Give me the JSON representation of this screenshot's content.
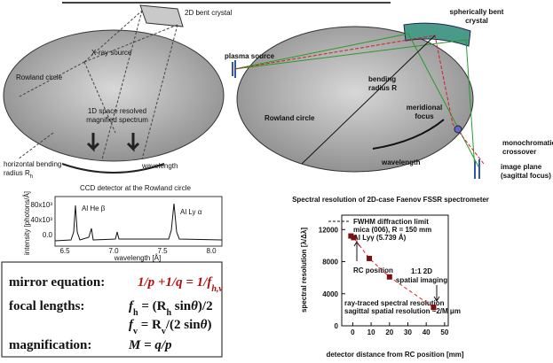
{
  "left_diagram": {
    "crystal": "2D bent crystal",
    "source": "X-ray source",
    "rowland": "Rowland circle",
    "spectrum": [
      "1D space resolved",
      "magnified spectrum"
    ],
    "bending": [
      "horizontal bending",
      "radius R",
      "h"
    ],
    "wavelength": "wavelength",
    "detector": "CCD detector at the Rowland circle",
    "inset": {
      "yticks": [
        "80x10³",
        "40x10³",
        "0.0"
      ],
      "xticks": [
        "6.5",
        "7.0",
        "7.5",
        "8.0"
      ],
      "ylabel": "intensity [photons/Å]",
      "xlabel": "wavelength [Å]",
      "peaks": [
        "Al He β",
        "Al Ly α"
      ]
    }
  },
  "right_diagram": {
    "plasma": "plasma source",
    "crystal": [
      "spherically bent",
      "crystal"
    ],
    "radius": [
      "bending",
      "radius R"
    ],
    "meridional": [
      "meridional",
      "focus"
    ],
    "rowland": "Rowland circle",
    "crossover": [
      "monochromatic",
      "crossover"
    ],
    "image": [
      "image plane",
      "(sagittal focus)"
    ],
    "wavelength": "wavelength"
  },
  "equations": {
    "mirror": {
      "label": "mirror equation:",
      "formula": [
        "1/p +1/q = 1/f",
        "h,v"
      ]
    },
    "focal": {
      "label": "focal lengths:",
      "fh": [
        "f",
        "h",
        " = (R",
        "h",
        " sin",
        "θ",
        ")/2"
      ],
      "fv": [
        "f",
        "v",
        " = R",
        "v",
        "/(2 sin",
        "θ",
        ")"
      ]
    },
    "magnification": {
      "label": "magnification:",
      "formula": "M = q/p"
    }
  },
  "chart_data": {
    "type": "scatter",
    "title": "Spectral resolution of 2D-case Faenov FSSR spectrometer",
    "xlabel": "detector distance from RC position [mm]",
    "ylabel": "spectral resolution [λ/Δλ]",
    "x": [
      -1,
      0.5,
      9,
      20,
      44
    ],
    "values": [
      11200,
      11000,
      8400,
      6100,
      2300
    ],
    "color": "#7a1010",
    "fit_color": "#e02020",
    "xlim": [
      -6,
      52
    ],
    "ylim": [
      0,
      13800
    ],
    "xticks": [
      0,
      10,
      20,
      30,
      40,
      50
    ],
    "yticks": [
      0,
      4000,
      8000,
      12000
    ],
    "annotations": {
      "fwhm": [
        "FWHM diffraction limit",
        "mica (006), R = 150 mm",
        "Al Lyγ (5.739 Å)"
      ],
      "rc": "RC position",
      "imaging": [
        "1:1 2D",
        "spatial imaging"
      ],
      "raytrace": [
        "ray-traced spectral resolution",
        "sagittal spatial resolution ~2/M μm"
      ]
    }
  }
}
